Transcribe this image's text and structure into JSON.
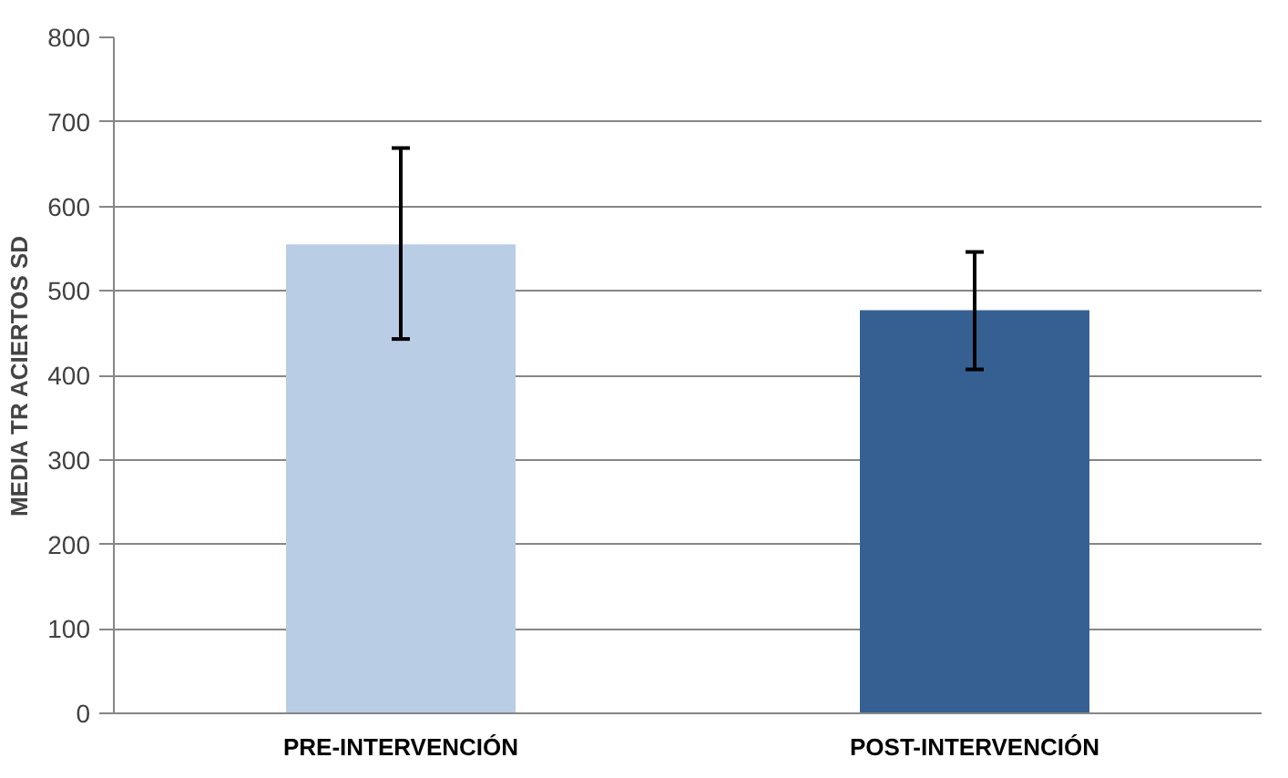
{
  "chart_data": {
    "type": "bar",
    "ylabel": "MEDIA TR ACIERTOS SD",
    "categories": [
      "PRE-INTERVENCIÓN",
      "POST-INTERVENCIÓN"
    ],
    "values": [
      555,
      477
    ],
    "colors": [
      "#b9cde5",
      "#366092"
    ],
    "errors": [
      [
        443,
        669
      ],
      [
        407,
        546
      ]
    ],
    "ylim": [
      0,
      800
    ],
    "yticks": [
      0,
      100,
      200,
      300,
      400,
      500,
      600,
      700,
      800
    ],
    "grid": "y"
  }
}
